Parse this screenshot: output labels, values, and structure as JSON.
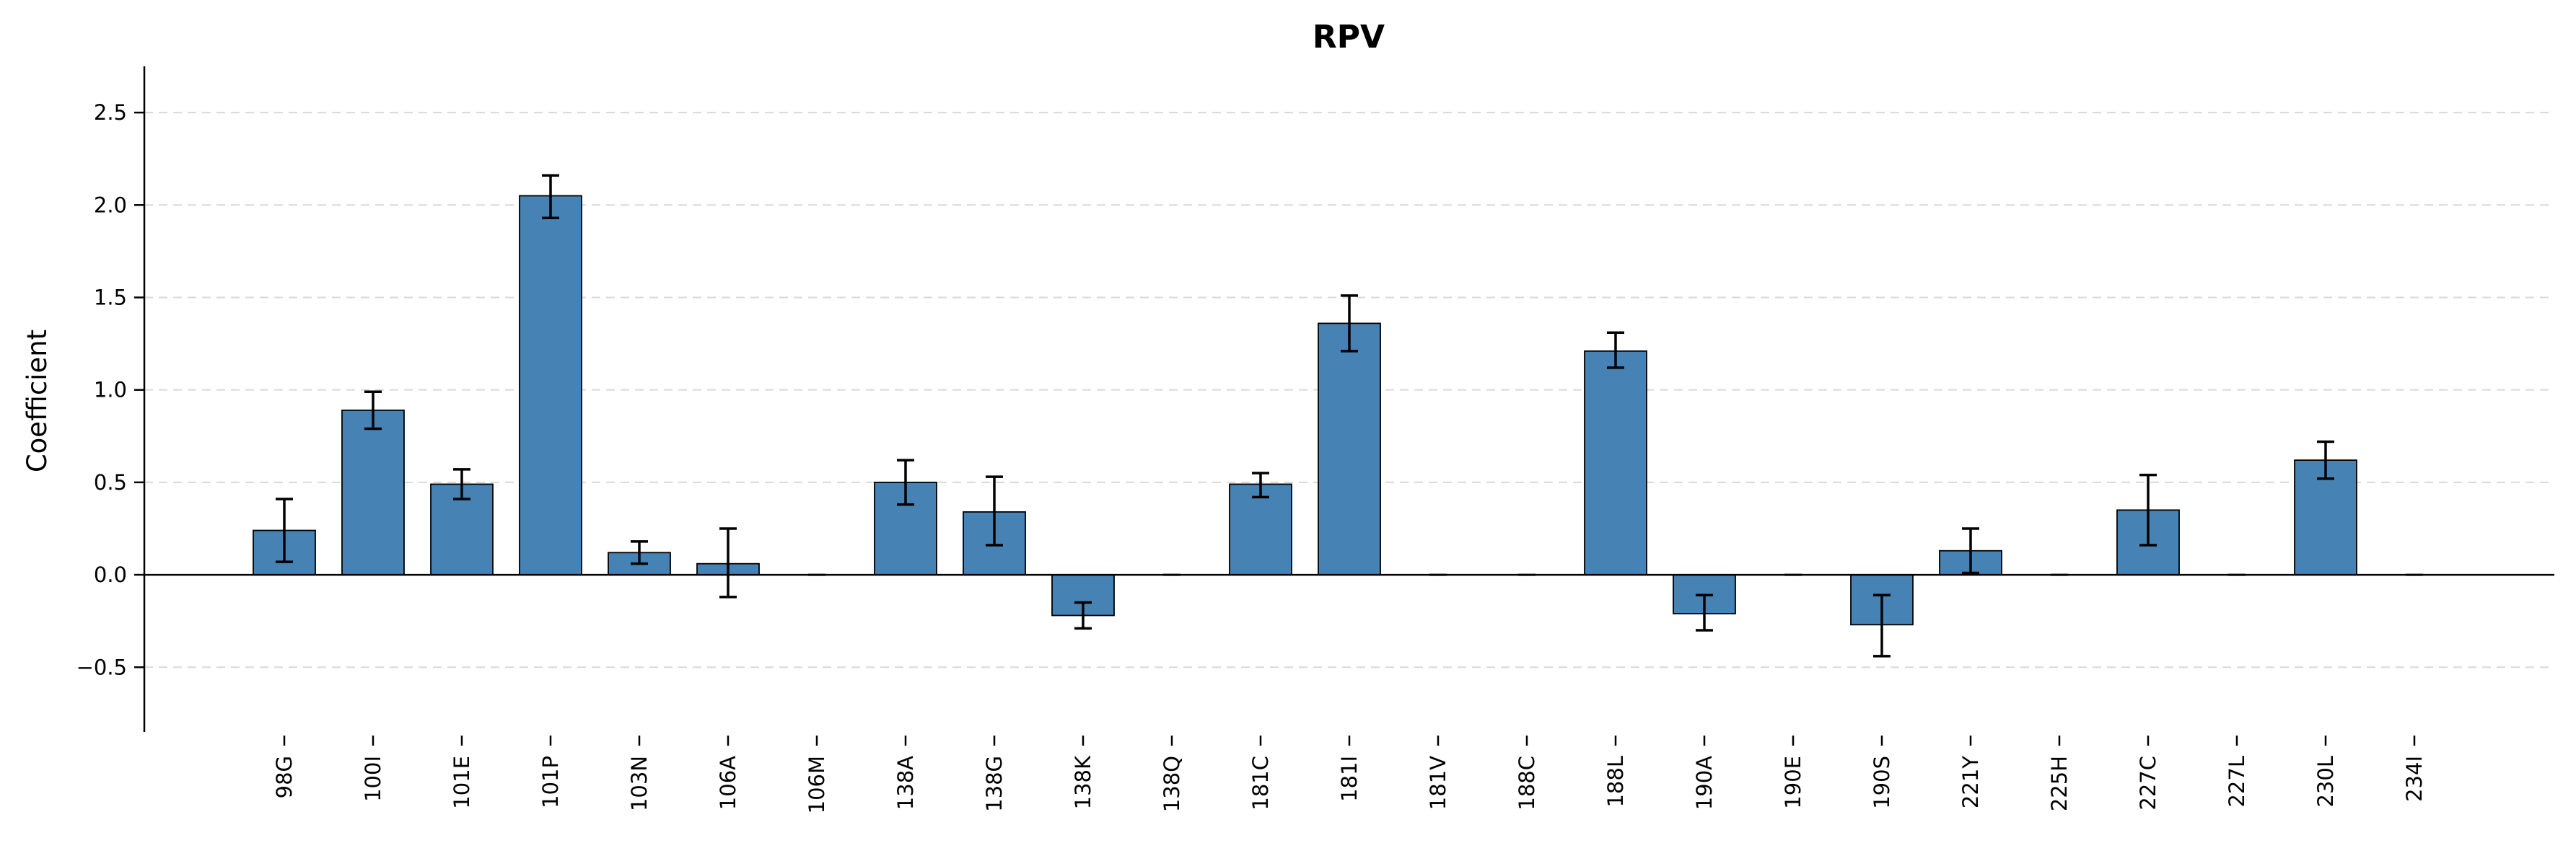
{
  "chart_data": {
    "type": "bar",
    "title": "RPV",
    "ylabel": "Coefficient",
    "xlabel": "",
    "ylim": [
      -0.85,
      2.75
    ],
    "yticks": [
      -0.5,
      0.0,
      0.5,
      1.0,
      1.5,
      2.0,
      2.5
    ],
    "ytick_labels": [
      "−0.5",
      "0.0",
      "0.5",
      "1.0",
      "1.5",
      "2.0",
      "2.5"
    ],
    "grid": "horizontal-dashed",
    "bar_color": "#4682b4",
    "categories": [
      "98G",
      "100I",
      "101E",
      "101P",
      "103N",
      "106A",
      "106M",
      "138A",
      "138G",
      "138K",
      "138Q",
      "181C",
      "181I",
      "181V",
      "188C",
      "188L",
      "190A",
      "190E",
      "190S",
      "221Y",
      "225H",
      "227C",
      "227L",
      "230L",
      "234I"
    ],
    "values": [
      0.24,
      0.89,
      0.49,
      2.05,
      0.12,
      0.06,
      0.0,
      0.5,
      0.34,
      -0.22,
      0.0,
      0.49,
      1.36,
      0.0,
      0.0,
      1.21,
      -0.21,
      0.0,
      -0.27,
      0.13,
      0.0,
      0.35,
      0.0,
      0.62,
      0.0
    ],
    "err_low": [
      0.07,
      0.79,
      0.41,
      1.93,
      0.06,
      -0.12,
      null,
      0.38,
      0.16,
      -0.29,
      null,
      0.42,
      1.21,
      null,
      null,
      1.12,
      -0.3,
      null,
      -0.44,
      0.01,
      null,
      0.16,
      null,
      0.52,
      null
    ],
    "err_high": [
      0.41,
      0.99,
      0.57,
      2.16,
      0.18,
      0.25,
      null,
      0.62,
      0.53,
      -0.15,
      null,
      0.55,
      1.51,
      null,
      null,
      1.31,
      -0.11,
      null,
      -0.11,
      0.25,
      null,
      0.54,
      null,
      0.72,
      null
    ]
  }
}
